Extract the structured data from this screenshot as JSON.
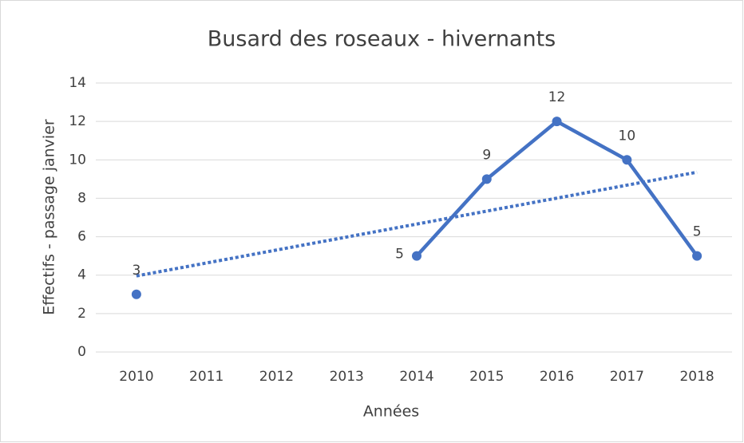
{
  "chart_data": {
    "type": "line",
    "title": "Busard des roseaux - hivernants",
    "x_label": "Années",
    "y_label": "Effectifs - passage janvier",
    "categories": [
      "2010",
      "2011",
      "2012",
      "2013",
      "2014",
      "2015",
      "2016",
      "2017",
      "2018"
    ],
    "series": [
      {
        "name": "Effectifs",
        "color": "#4472c4",
        "values": [
          3,
          null,
          null,
          null,
          5,
          9,
          12,
          10,
          5
        ]
      }
    ],
    "trendline": "linear",
    "ylim": [
      0,
      14
    ],
    "yticks": [
      0,
      2,
      4,
      6,
      8,
      10,
      12,
      14
    ],
    "grid": true,
    "legend": false
  }
}
